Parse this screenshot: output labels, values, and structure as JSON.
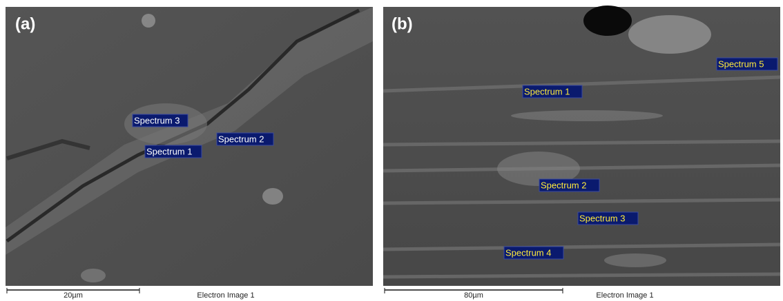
{
  "panels": [
    {
      "label": "(a)",
      "spectra": [
        "Spectrum 3",
        "Spectrum 2",
        "Spectrum 1"
      ],
      "scale_bar": "20µm",
      "caption": "Electron Image 1"
    },
    {
      "label": "(b)",
      "spectra": [
        "Spectrum 5",
        "Spectrum 1",
        "Spectrum 2",
        "Spectrum 3",
        "Spectrum 4"
      ],
      "scale_bar": "80µm",
      "caption": "Electron Image 1"
    }
  ]
}
